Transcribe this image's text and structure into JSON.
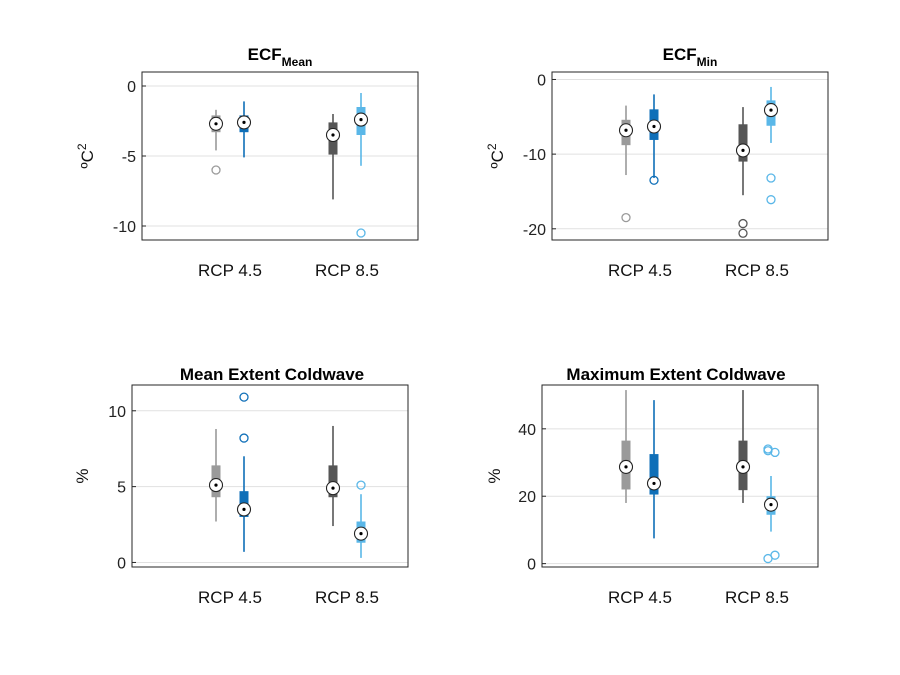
{
  "colors": {
    "rcp45_model1": "#9a9a9a",
    "rcp45_model2": "#0f6fb8",
    "rcp85_model1": "#565656",
    "rcp85_model2": "#5ab7e8",
    "grid": "#e1e1e1",
    "axis": "#262626"
  },
  "chart_data": [
    {
      "type": "box",
      "title_main": "ECF",
      "title_sub": "Mean",
      "ylabel_main": "ºC",
      "ylabel_sup": "2",
      "ylim": [
        -11,
        1
      ],
      "yticks": [
        0,
        -5,
        -10
      ],
      "grid": true,
      "categories": [
        "RCP 4.5",
        "RCP 8.5"
      ],
      "boxes": [
        {
          "category": "RCP 4.5",
          "color": "rcp45_model1",
          "min": -4.6,
          "q1": -3.3,
          "median": -2.7,
          "q3": -2.1,
          "max": -1.7,
          "outliers": [
            -6.0
          ]
        },
        {
          "category": "RCP 4.5",
          "color": "rcp45_model2",
          "min": -5.1,
          "q1": -3.3,
          "median": -2.6,
          "q3": -2.1,
          "max": -1.1,
          "outliers": []
        },
        {
          "category": "RCP 8.5",
          "color": "rcp85_model1",
          "min": -8.1,
          "q1": -4.9,
          "median": -3.5,
          "q3": -2.6,
          "max": -2.0,
          "outliers": []
        },
        {
          "category": "RCP 8.5",
          "color": "rcp85_model2",
          "min": -5.7,
          "q1": -3.5,
          "median": -2.4,
          "q3": -1.5,
          "max": -0.5,
          "outliers": [
            -10.5
          ]
        }
      ]
    },
    {
      "type": "box",
      "title_main": "ECF",
      "title_sub": "Min",
      "ylabel_main": "ºC",
      "ylabel_sup": "2",
      "ylim": [
        -21.5,
        1
      ],
      "yticks": [
        0,
        -10,
        -20
      ],
      "grid": true,
      "categories": [
        "RCP 4.5",
        "RCP 8.5"
      ],
      "boxes": [
        {
          "category": "RCP 4.5",
          "color": "rcp45_model1",
          "min": -12.8,
          "q1": -8.8,
          "median": -6.8,
          "q3": -5.4,
          "max": -3.5,
          "outliers": [
            -18.5
          ]
        },
        {
          "category": "RCP 4.5",
          "color": "rcp45_model2",
          "min": -13.2,
          "q1": -8.1,
          "median": -6.3,
          "q3": -4.0,
          "max": -2.0,
          "outliers": [
            -13.5
          ]
        },
        {
          "category": "RCP 8.5",
          "color": "rcp85_model1",
          "min": -15.5,
          "q1": -11.0,
          "median": -9.5,
          "q3": -6.0,
          "max": -3.7,
          "outliers": [
            -19.3,
            -20.6
          ]
        },
        {
          "category": "RCP 8.5",
          "color": "rcp85_model2",
          "min": -8.5,
          "q1": -6.2,
          "median": -4.1,
          "q3": -2.8,
          "max": -1.0,
          "outliers": [
            -13.2,
            -16.1
          ]
        }
      ]
    },
    {
      "type": "box",
      "title_main": "Mean Extent Coldwave",
      "title_sub": "",
      "ylabel_main": "%",
      "ylabel_sup": "",
      "ylim": [
        -0.3,
        11.7
      ],
      "yticks": [
        10,
        5,
        0
      ],
      "grid": true,
      "categories": [
        "RCP 4.5",
        "RCP 8.5"
      ],
      "boxes": [
        {
          "category": "RCP 4.5",
          "color": "rcp45_model1",
          "min": 2.7,
          "q1": 4.3,
          "median": 5.1,
          "q3": 6.4,
          "max": 8.8,
          "outliers": []
        },
        {
          "category": "RCP 4.5",
          "color": "rcp45_model2",
          "min": 0.7,
          "q1": 3.0,
          "median": 3.5,
          "q3": 4.7,
          "max": 7.0,
          "outliers": [
            8.2,
            10.9
          ]
        },
        {
          "category": "RCP 8.5",
          "color": "rcp85_model1",
          "min": 2.4,
          "q1": 4.3,
          "median": 4.9,
          "q3": 6.4,
          "max": 9.0,
          "outliers": []
        },
        {
          "category": "RCP 8.5",
          "color": "rcp85_model2",
          "min": 0.3,
          "q1": 1.3,
          "median": 1.9,
          "q3": 2.7,
          "max": 4.5,
          "outliers": [
            5.1
          ]
        }
      ]
    },
    {
      "type": "box",
      "title_main": "Maximum Extent Coldwave",
      "title_sub": "",
      "ylabel_main": "%",
      "ylabel_sup": "",
      "ylim": [
        -1,
        53
      ],
      "yticks": [
        40,
        20,
        0
      ],
      "grid": true,
      "categories": [
        "RCP 4.5",
        "RCP 8.5"
      ],
      "boxes": [
        {
          "category": "RCP 4.5",
          "color": "rcp45_model1",
          "min": 18.0,
          "q1": 22.0,
          "median": 28.7,
          "q3": 36.5,
          "max": 51.5,
          "outliers": []
        },
        {
          "category": "RCP 4.5",
          "color": "rcp45_model2",
          "min": 7.5,
          "q1": 20.5,
          "median": 23.8,
          "q3": 32.5,
          "max": 48.5,
          "outliers": []
        },
        {
          "category": "RCP 8.5",
          "color": "rcp85_model1",
          "min": 18.0,
          "q1": 21.8,
          "median": 28.7,
          "q3": 36.5,
          "max": 51.5,
          "outliers": []
        },
        {
          "category": "RCP 8.5",
          "color": "rcp85_model2",
          "min": 9.5,
          "q1": 14.5,
          "median": 17.5,
          "q3": 20.0,
          "max": 26.0,
          "outliers": [
            33.5,
            33.0,
            34.0,
            2.5,
            1.5
          ]
        }
      ]
    }
  ]
}
